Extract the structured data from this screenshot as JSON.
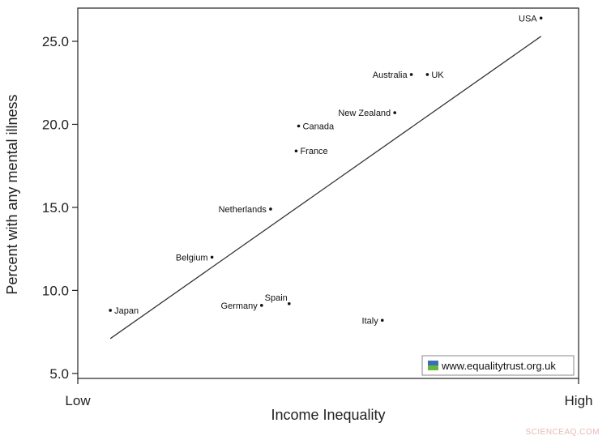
{
  "chart_data": {
    "type": "scatter",
    "xlabel": "Income Inequality",
    "ylabel": "Percent with any mental illness",
    "xtick_labels": [
      "Low",
      "High"
    ],
    "yticks": [
      5.0,
      10.0,
      15.0,
      20.0,
      25.0
    ],
    "ytick_labels": [
      "5.0",
      "10.0",
      "15.0",
      "20.0",
      "25.0"
    ],
    "xlim": [
      0,
      100
    ],
    "ylim": [
      4.7,
      27
    ],
    "grid": false,
    "points": [
      {
        "label": "USA",
        "x": 92.5,
        "y": 26.4,
        "label_side": "left"
      },
      {
        "label": "Australia",
        "x": 66.6,
        "y": 23.0,
        "label_side": "left"
      },
      {
        "label": "UK",
        "x": 69.8,
        "y": 23.0,
        "label_side": "right"
      },
      {
        "label": "New Zealand",
        "x": 63.3,
        "y": 20.7,
        "label_side": "left"
      },
      {
        "label": "Canada",
        "x": 44.1,
        "y": 19.9,
        "label_side": "right"
      },
      {
        "label": "France",
        "x": 43.6,
        "y": 18.4,
        "label_side": "right"
      },
      {
        "label": "Netherlands",
        "x": 38.5,
        "y": 14.9,
        "label_side": "left"
      },
      {
        "label": "Belgium",
        "x": 26.8,
        "y": 12.0,
        "label_side": "left"
      },
      {
        "label": "Japan",
        "x": 6.5,
        "y": 8.8,
        "label_side": "right"
      },
      {
        "label": "Spain",
        "x": 42.2,
        "y": 9.2,
        "label_side": "left-above"
      },
      {
        "label": "Germany",
        "x": 36.7,
        "y": 9.1,
        "label_side": "left"
      },
      {
        "label": "Italy",
        "x": 60.8,
        "y": 8.2,
        "label_side": "left"
      }
    ],
    "trendline": {
      "x": [
        6.5,
        92.5
      ],
      "y": [
        7.1,
        25.3
      ]
    },
    "legend": {
      "text": "www.equalitytrust.org.uk",
      "placement": "bottom-right"
    },
    "watermark": "SCIENCEAQ.COM"
  }
}
